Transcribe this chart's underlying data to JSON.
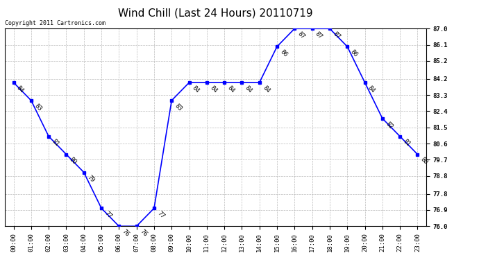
{
  "title": "Wind Chill (Last 24 Hours) 20110719",
  "copyright": "Copyright 2011 Cartronics.com",
  "hours": [
    0,
    1,
    2,
    3,
    4,
    5,
    6,
    7,
    8,
    9,
    10,
    11,
    12,
    13,
    14,
    15,
    16,
    17,
    18,
    19,
    20,
    21,
    22,
    23
  ],
  "values": [
    84,
    83,
    81,
    80,
    79,
    77,
    76,
    76,
    77,
    83,
    84,
    84,
    84,
    84,
    84,
    86,
    87,
    87,
    87,
    86,
    84,
    82,
    81,
    80
  ],
  "ylim": [
    76.0,
    87.0
  ],
  "yticks": [
    76.0,
    76.9,
    77.8,
    78.8,
    79.7,
    80.6,
    81.5,
    82.4,
    83.3,
    84.2,
    85.2,
    86.1,
    87.0
  ],
  "line_color": "blue",
  "marker_color": "blue",
  "marker": "s",
  "marker_size": 3,
  "bg_color": "white",
  "grid_color": "#bbbbbb",
  "label_color": "black",
  "title_fontsize": 11,
  "label_fontsize": 6.5,
  "annotation_fontsize": 6,
  "copyright_fontsize": 6
}
